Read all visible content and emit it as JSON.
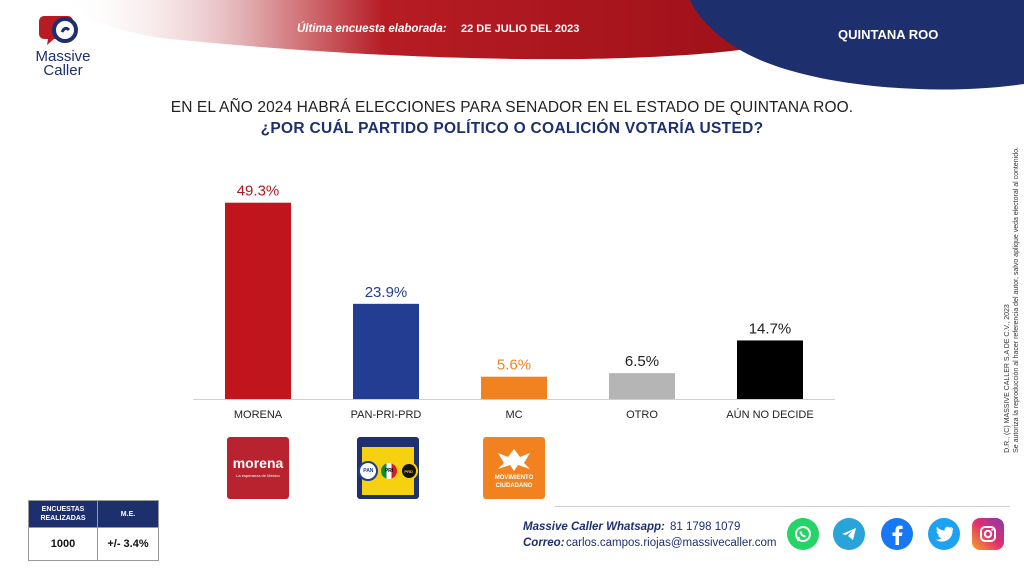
{
  "brand": {
    "line1": "Massive",
    "line2": "Caller"
  },
  "header": {
    "survey_label": "Última encuesta elaborada:",
    "survey_date": "22 DE JULIO DEL 2023",
    "region": "QUINTANA ROO"
  },
  "question": {
    "line1": "EN EL AÑO 2024 HABRÁ ELECCIONES PARA SENADOR EN EL ESTADO DE QUINTANA ROO.",
    "line2": "¿POR CUÁL PARTIDO POLÍTICO O COALICIÓN  VOTARÍA USTED?"
  },
  "chart_data": {
    "type": "bar",
    "categories": [
      "MORENA",
      "PAN-PRI-PRD",
      "MC",
      "OTRO",
      "AÚN NO DECIDE"
    ],
    "values": [
      49.3,
      23.9,
      5.6,
      6.5,
      14.7
    ],
    "value_labels": [
      "49.3%",
      "23.9%",
      "5.6%",
      "6.5%",
      "14.7%"
    ],
    "colors": [
      "#c0151d",
      "#223d91",
      "#f2821f",
      "#b5b5b5",
      "#000000"
    ],
    "label_colors": [
      "#b3171f",
      "#223d91",
      "#f2821f",
      "#222222",
      "#222222"
    ],
    "ylim": [
      0,
      55
    ],
    "grid": false,
    "legend": "none"
  },
  "party_logos": {
    "morena": {
      "name": "morena",
      "tagline": "La esperanza de México",
      "color": "#b8232f"
    },
    "coalition": {
      "pan": "PAN",
      "pri": "PRI",
      "prd": "PRD"
    },
    "mc": {
      "line1": "MOVIMIENTO",
      "line2": "CIUDADANO",
      "color": "#f2821f"
    }
  },
  "side_note": {
    "line1": "D.R., (C) MASSIVE CALLER S.A DE C.V., 2023",
    "line2": "Se autoriza la reproducción al hacer referencia del autor, salvo aplique veda electoral al contenido."
  },
  "stats": {
    "col1_header": "ENCUESTAS REALIZADAS",
    "col2_header": "M.E.",
    "col1_value": "1000",
    "col2_value": "+/- 3.4%"
  },
  "footer": {
    "whatsapp_label": "Massive Caller Whatsapp:",
    "whatsapp_number": "81 1798 1079",
    "email_label": "Correo:",
    "email": "carlos.campos.riojas@massivecaller.com"
  },
  "social_icons": [
    "whatsapp-icon",
    "telegram-icon",
    "facebook-icon",
    "twitter-icon",
    "instagram-icon"
  ]
}
